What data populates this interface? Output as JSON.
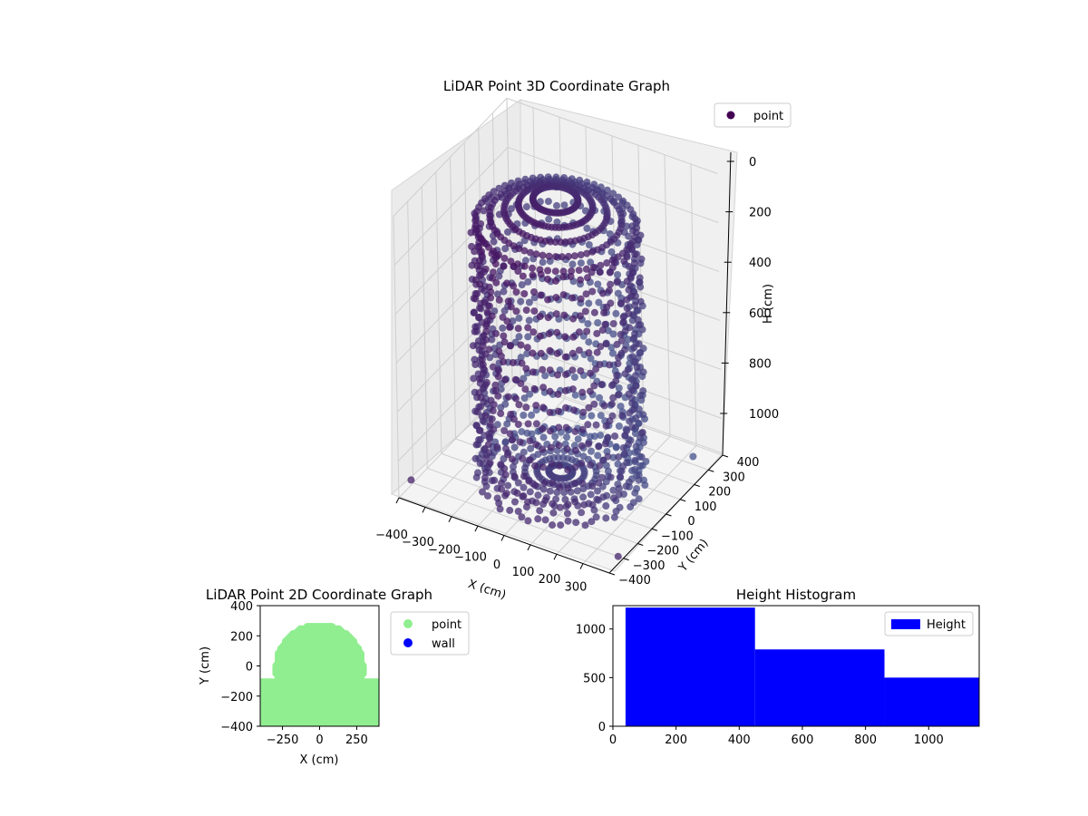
{
  "chart_data": [
    {
      "type": "scatter",
      "projection": "3d",
      "title": "LiDAR Point 3D Coordinate Graph",
      "xlabel": "X (cm)",
      "ylabel": "Y (cm)",
      "zlabel": "H (cm)",
      "xlim": [
        -400,
        400
      ],
      "ylim": [
        -400,
        400
      ],
      "zlim": [
        1150,
        0
      ],
      "z_inverted": true,
      "xticks": [
        -400,
        -300,
        -200,
        -100,
        0,
        100,
        200,
        300
      ],
      "yticks": [
        -400,
        -300,
        -200,
        -100,
        0,
        100,
        200,
        300,
        400
      ],
      "zticks": [
        0,
        200,
        400,
        600,
        800,
        1000
      ],
      "legend": {
        "entries": [
          {
            "label": "point",
            "color": "#440154"
          }
        ],
        "position": "upper-right"
      },
      "grid": true,
      "colormap": "viridis (dark purple near camera, lighter blue-purple with depth)",
      "series": [
        {
          "name": "point",
          "shape": "cylindrical wall with dome-shaped top",
          "radius_cm": 270,
          "wall_height_range_cm": [
            0,
            1150
          ],
          "ring_count": 14,
          "points_per_ring": 64,
          "scattered_outliers": [
            {
              "x": 380,
              "y": -300,
              "h": 1150
            },
            {
              "x": 320,
              "y": 340,
              "h": 1150
            },
            {
              "x": -380,
              "y": -350,
              "h": 1100
            },
            {
              "x": 350,
              "y": -60,
              "h": 800
            }
          ]
        }
      ]
    },
    {
      "type": "scatter",
      "title": "LiDAR Point 2D Coordinate Graph",
      "xlabel": "X (cm)",
      "ylabel": "Y (cm)",
      "xlim": [
        -400,
        400
      ],
      "ylim": [
        -400,
        400
      ],
      "xticks": [
        -250,
        0,
        250
      ],
      "yticks": [
        -400,
        -200,
        0,
        200,
        400
      ],
      "legend": {
        "entries": [
          {
            "label": "point",
            "color": "#90ee90"
          },
          {
            "label": "wall",
            "color": "#0000ff"
          }
        ],
        "position": "outside-right"
      },
      "series": [
        {
          "name": "point",
          "color": "#90ee90",
          "shape": "filled disc of radius about 270 cm centered at origin"
        },
        {
          "name": "wall",
          "color": "#0000ff",
          "points": []
        }
      ]
    },
    {
      "type": "bar",
      "subtype": "histogram",
      "title": "Height Histogram",
      "xlim": [
        0,
        1160
      ],
      "ylim": [
        0,
        1240
      ],
      "xticks": [
        0,
        200,
        400,
        600,
        800,
        1000
      ],
      "yticks": [
        0,
        500,
        1000
      ],
      "legend": {
        "entries": [
          {
            "label": "Height",
            "color": "#0000ff"
          }
        ],
        "position": "upper-right"
      },
      "bins": [
        {
          "x0": 40,
          "x1": 450,
          "count": 1220
        },
        {
          "x0": 450,
          "x1": 860,
          "count": 790
        },
        {
          "x0": 860,
          "x1": 1160,
          "count": 500
        }
      ]
    }
  ]
}
